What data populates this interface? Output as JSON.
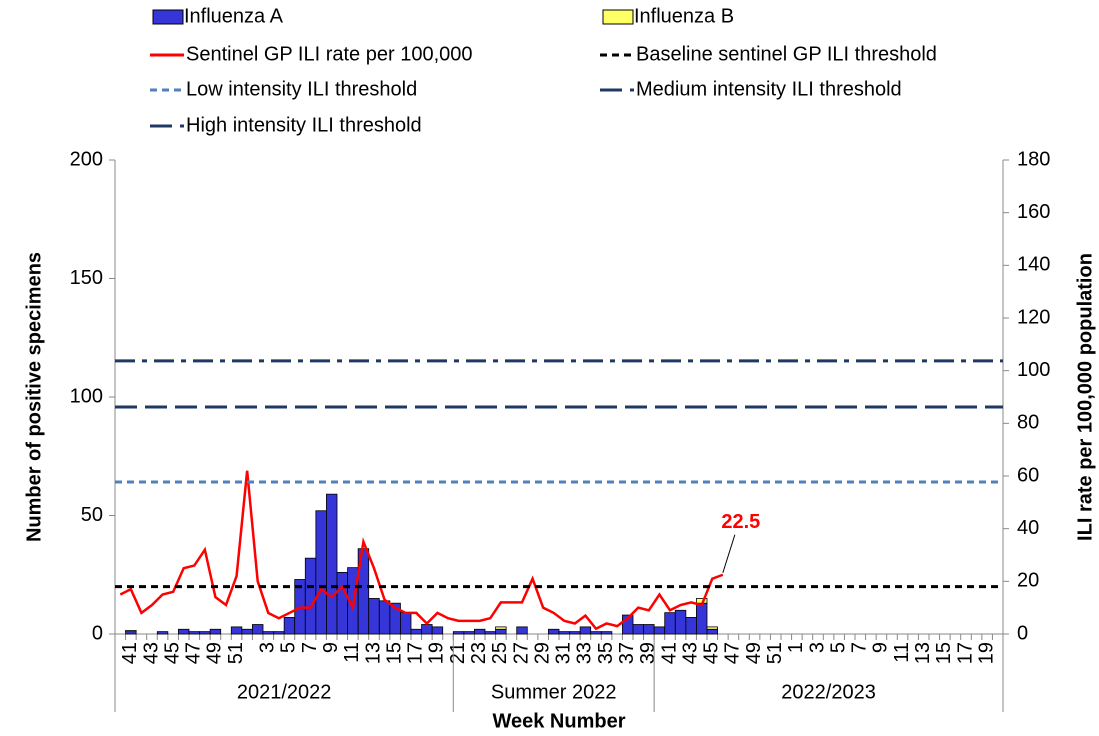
{
  "chart_data": {
    "type": "bar",
    "x_label": "Week Number",
    "y_label": "Number of positive specimens",
    "y2_label": "ILI rate per 100,000 population",
    "groups": [
      {
        "name": "2021/2022",
        "categories": [
          null,
          "41",
          null,
          "43",
          null,
          "45",
          null,
          "47",
          null,
          "49",
          null,
          "51",
          null,
          null,
          "3",
          null,
          "5",
          null,
          "7",
          null,
          "9",
          null,
          "11",
          null,
          "13",
          null,
          "15",
          null,
          "17",
          null,
          "19",
          null
        ]
      },
      {
        "name": "Summer 2022",
        "categories": [
          "21",
          null,
          "23",
          null,
          "25",
          null,
          "27",
          null,
          "29",
          null,
          "31",
          null,
          "33",
          null,
          "35",
          null,
          "37",
          null,
          "39"
        ]
      },
      {
        "name": "2022/2023",
        "categories": [
          null,
          "41",
          null,
          "43",
          null,
          "45",
          null,
          "47",
          null,
          "49",
          null,
          "51",
          null,
          "1",
          null,
          "3",
          null,
          "5",
          null,
          "7",
          null,
          "9",
          null,
          "11",
          null,
          "13",
          null,
          "15",
          null,
          "17",
          null,
          "19",
          null
        ]
      }
    ],
    "ylim": [
      0,
      200
    ],
    "yticks": [
      0,
      50,
      100,
      150,
      200
    ],
    "y2lim": [
      0,
      180
    ],
    "y2ticks": [
      0,
      20,
      40,
      60,
      80,
      100,
      120,
      140,
      160,
      180
    ],
    "series": [
      {
        "name": "Influenza A",
        "type": "bar",
        "stack": true,
        "color": "#3636d8",
        "values": [
          0,
          1,
          0,
          0,
          1,
          0,
          2,
          1,
          1,
          2,
          0,
          3,
          2,
          4,
          1,
          1,
          7,
          23,
          32,
          52,
          59,
          26,
          28,
          36,
          15,
          14,
          13,
          9,
          2,
          4,
          3,
          0,
          1,
          1,
          2,
          1,
          2,
          0,
          3,
          0,
          0,
          2,
          1,
          1,
          3,
          1,
          1,
          0,
          8,
          4,
          4,
          3,
          9,
          10,
          7,
          13,
          2,
          0,
          0,
          0,
          0,
          0,
          0,
          0,
          0,
          0,
          0,
          0,
          0,
          0,
          0,
          0,
          0,
          0,
          0,
          0,
          0,
          0,
          0,
          0,
          0,
          0,
          0,
          0
        ]
      },
      {
        "name": "Influenza B",
        "type": "bar",
        "stack": true,
        "color": "#ffff66",
        "values": [
          0,
          0.5,
          0,
          0,
          0,
          0,
          0,
          0,
          0,
          0,
          0,
          0,
          0,
          0,
          0,
          0,
          0,
          0,
          0,
          0,
          0,
          0,
          0,
          0,
          0,
          0,
          0,
          0,
          0,
          0,
          0,
          0,
          0,
          0,
          0,
          0,
          1,
          0,
          0,
          0,
          0,
          0,
          0,
          0,
          0,
          0,
          0,
          0,
          0,
          0,
          0,
          0,
          0,
          0,
          0,
          2,
          1,
          0,
          0,
          0,
          0,
          0,
          0,
          0,
          0,
          0,
          0,
          0,
          0,
          0,
          0,
          0,
          0,
          0,
          0,
          0,
          0,
          0,
          0,
          0,
          0,
          0,
          0,
          0
        ]
      },
      {
        "name": "Sentinel GP ILI rate per 100,000",
        "type": "line",
        "axis": "y2",
        "color": "#ff0000",
        "data_labels": "last",
        "values": [
          15,
          17,
          8,
          11,
          15,
          16,
          25,
          26,
          32,
          14,
          11,
          22,
          62,
          20,
          8,
          6,
          8,
          10,
          10,
          17,
          14,
          18,
          10,
          35,
          25,
          13,
          10,
          8,
          8,
          4,
          8,
          6,
          5,
          5,
          5,
          6,
          12,
          12,
          12,
          21,
          10,
          8,
          5,
          4,
          7,
          2,
          4,
          3,
          6,
          10,
          9,
          15,
          9,
          11,
          12,
          11,
          21,
          22.5,
          null,
          null,
          null,
          null,
          null,
          null,
          null,
          null,
          null,
          null,
          null,
          null,
          null,
          null,
          null,
          null,
          null,
          null,
          null,
          null,
          null,
          null,
          null,
          null,
          null,
          null
        ]
      },
      {
        "name": "Baseline sentinel GP ILI threshold",
        "type": "hline",
        "axis": "y2",
        "color": "#000000",
        "dash": "short",
        "value": 18
      },
      {
        "name": "Low intensity ILI threshold",
        "type": "hline",
        "axis": "y2",
        "color": "#4f81bd",
        "dash": "short",
        "value": 57.7
      },
      {
        "name": "Medium intensity ILI threshold",
        "type": "hline",
        "axis": "y2",
        "color": "#1f3864",
        "dash": "long",
        "value": 86.2
      },
      {
        "name": "High intensity ILI threshold",
        "type": "hline",
        "axis": "y2",
        "color": "#1f3864",
        "dash": "dashdot",
        "value": 103.7
      }
    ]
  }
}
